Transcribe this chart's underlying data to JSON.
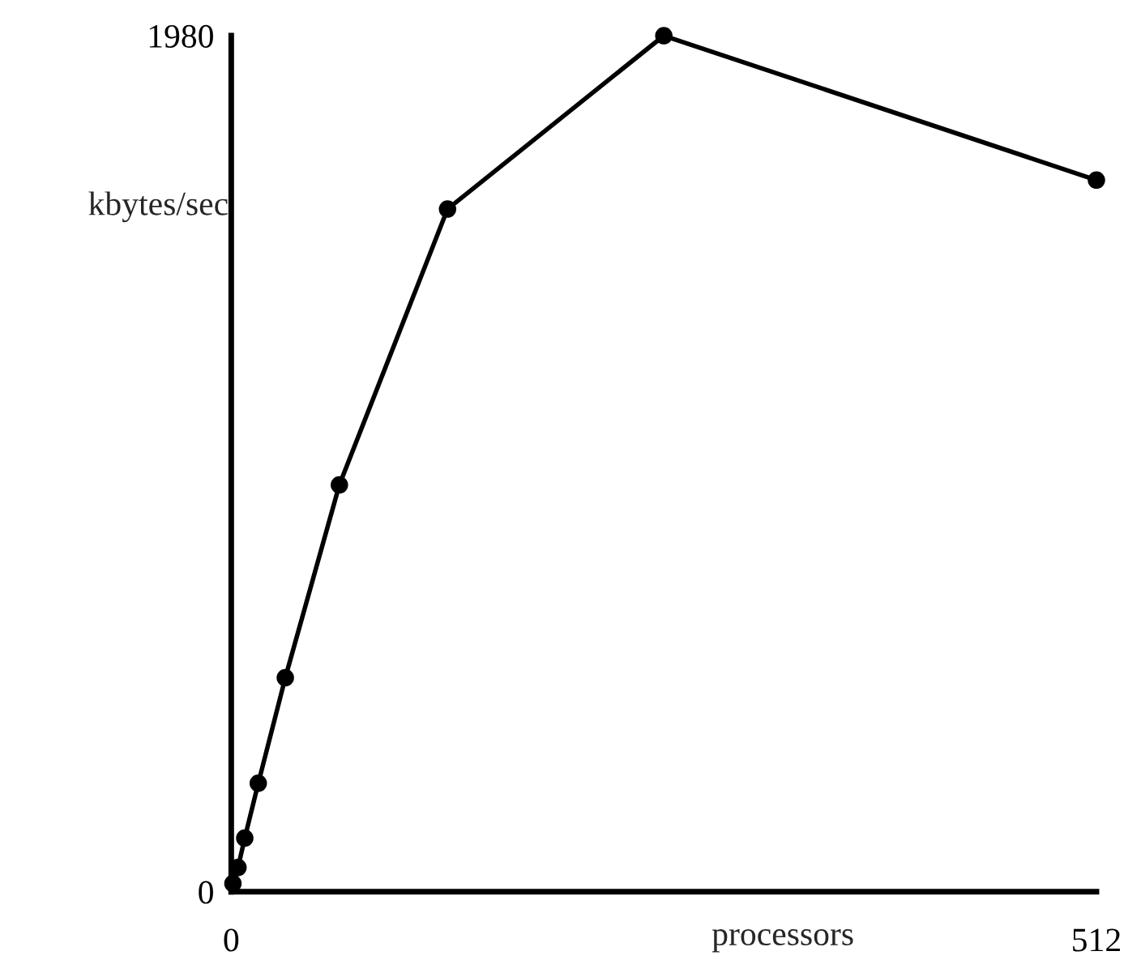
{
  "chart_data": {
    "type": "line",
    "xlabel": "processors",
    "ylabel": "kbytes/sec",
    "x": [
      1,
      4,
      8,
      16,
      32,
      64,
      128,
      256,
      512
    ],
    "series": [
      {
        "color": "#000000",
        "values": [
          19,
          56,
          124,
          251,
          495,
          941,
          1579,
          1980,
          1646
        ]
      }
    ],
    "xlim": [
      0,
      512
    ],
    "ylim": [
      0,
      1980
    ],
    "xticks": [
      0,
      512
    ],
    "yticks": [
      0,
      1980
    ],
    "marker": "circle",
    "line_style": "solid",
    "grid": false,
    "legend": false
  }
}
